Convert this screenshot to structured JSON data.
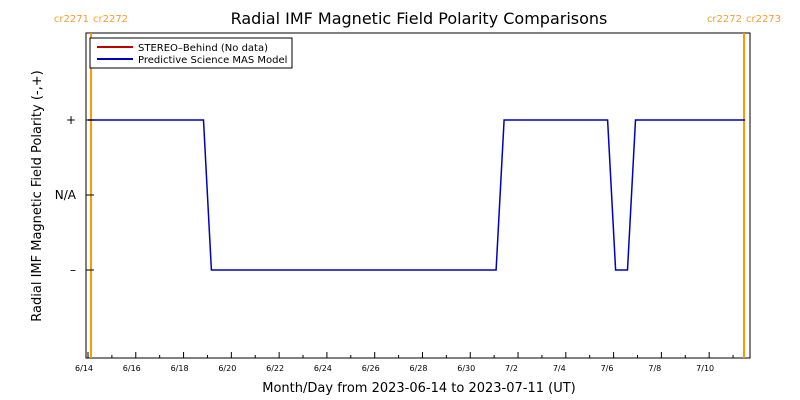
{
  "chart_data": {
    "type": "line",
    "title": "Radial IMF Magnetic Field Polarity Comparisons",
    "xlabel": "Month/Day from 2023-06-14 to 2023-07-11 (UT)",
    "ylabel": "Radial IMF Magnetic Field Polarity (-,+)",
    "x_range": [
      "2023-06-14",
      "2023-07-11"
    ],
    "x_ticks": [
      "6/14",
      "6/16",
      "6/18",
      "6/20",
      "6/22",
      "6/24",
      "6/26",
      "6/28",
      "6/30",
      "7/2",
      "7/4",
      "7/6",
      "7/8",
      "7/10"
    ],
    "y_ticks": [
      "+",
      "N/A",
      "–"
    ],
    "y_range": [
      -2,
      2
    ],
    "legend_position": "top-left",
    "series": [
      {
        "name": "STEREO–Behind (No data)",
        "color": "#c00000",
        "x": [],
        "y": []
      },
      {
        "name": "Predictive Science MAS Model",
        "color": "#0000c0",
        "x": [
          "2023-06-14",
          "2023-06-18 20:00",
          "2023-06-19 04:00",
          "2023-07-01 02:00",
          "2023-07-01 10:00",
          "2023-07-05 18:00",
          "2023-07-06 02:00",
          "2023-07-06 14:00",
          "2023-07-06 22:00",
          "2023-07-11 12:00"
        ],
        "y": [
          1,
          1,
          -1,
          -1,
          1,
          1,
          -1,
          -1,
          1,
          1
        ]
      }
    ],
    "carrington_markers": [
      {
        "date": "2023-06-14 03:00",
        "left_label": "cr2271",
        "right_label": "cr2272"
      },
      {
        "date": "2023-07-11 11:00",
        "left_label": "cr2272",
        "right_label": "cr2273"
      }
    ],
    "marker_color": "#ff9900"
  }
}
